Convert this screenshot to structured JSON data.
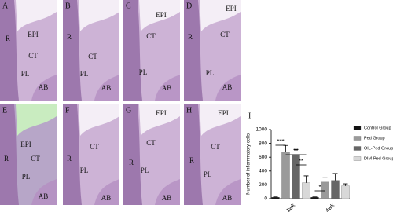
{
  "panels": [
    {
      "label": "A",
      "labels": [
        "R",
        "EPI",
        "CT",
        "PL",
        "AB"
      ]
    },
    {
      "label": "B",
      "labels": [
        "R",
        "CT",
        "PL",
        "AB"
      ]
    },
    {
      "label": "C",
      "labels": [
        "EPI",
        "CT",
        "PL",
        "AB"
      ]
    },
    {
      "label": "D",
      "labels": [
        "R",
        "EPI",
        "CT",
        "PL",
        "AB"
      ]
    },
    {
      "label": "E",
      "labels": [
        "R",
        "EPI",
        "CT",
        "PL",
        "AB"
      ]
    },
    {
      "label": "F",
      "labels": [
        "R",
        "CT",
        "PL",
        "AB"
      ]
    },
    {
      "label": "G",
      "labels": [
        "R",
        "EPI",
        "CT",
        "PL",
        "AB"
      ]
    },
    {
      "label": "H",
      "labels": [
        "R",
        "EPI",
        "CT",
        "PL",
        "AB"
      ]
    }
  ],
  "chart_data": {
    "type": "bar",
    "panel_label": "I",
    "y_label": "Number of inflammatory cells",
    "categories": [
      "1wk",
      "4wk"
    ],
    "series": [
      {
        "name": "Control Group",
        "color": "#111111",
        "values": [
          20,
          20
        ],
        "errors": [
          5,
          5
        ]
      },
      {
        "name": "Ped Group",
        "color": "#9a9a9a",
        "values": [
          680,
          240
        ],
        "errors": [
          90,
          70
        ]
      },
      {
        "name": "OIL-Ped Group",
        "color": "#666666",
        "values": [
          640,
          265
        ],
        "errors": [
          70,
          100
        ]
      },
      {
        "name": "DIM-Ped Group",
        "color": "#d8d8d8",
        "values": [
          230,
          185
        ],
        "errors": [
          100,
          30
        ]
      }
    ],
    "ylim": [
      0,
      1000
    ],
    "yticks": [
      0,
      200,
      400,
      600,
      800,
      1000
    ],
    "annotations": [
      "***",
      "**",
      "**",
      "*"
    ]
  }
}
